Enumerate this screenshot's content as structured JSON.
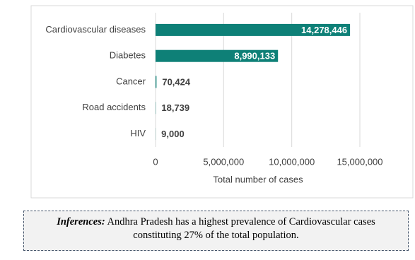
{
  "chart_data": {
    "type": "barh",
    "categories": [
      "Cardiovascular diseases",
      "Diabetes",
      "Cancer",
      "Road accidents",
      "HIV"
    ],
    "values": [
      14278446,
      8990133,
      70424,
      18739,
      9000
    ],
    "value_labels": [
      "14,278,446",
      "8,990,133",
      "70,424",
      "18,739",
      "9,000"
    ],
    "color": "#0e8077",
    "xlabel": "Total number of cases",
    "xlim": [
      0,
      15000000
    ],
    "xticks": [
      0,
      {
        "value": 5000000,
        "label": "5,000,000"
      },
      {
        "value": 10000000,
        "label": "10,000,000"
      },
      {
        "value": 15000000,
        "label": "15,000,000"
      }
    ],
    "grid": true,
    "annotation": {
      "label": "Inferences:",
      "text": "Andhra Pradesh  has a highest prevalence of Cardiovascular cases constituting 27% of the total population."
    }
  }
}
